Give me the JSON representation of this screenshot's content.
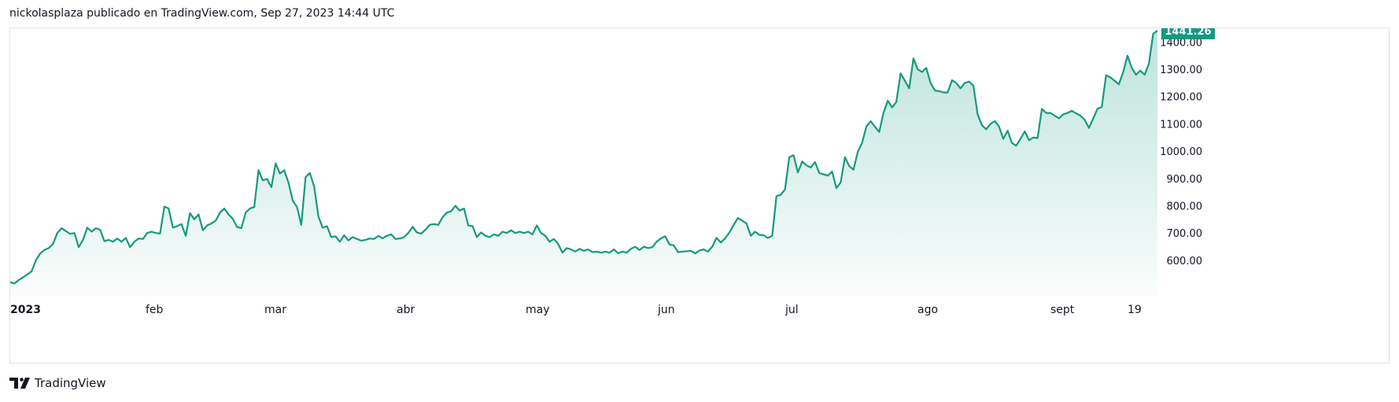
{
  "header": {
    "text": "nickolasplaza publicado en TradingView.com, Sep 27, 2023 14:44 UTC"
  },
  "footer": {
    "brand": "TradingView"
  },
  "chart_data": {
    "type": "area",
    "x_tick_labels": [
      "2023",
      "feb",
      "mar",
      "abr",
      "may",
      "jun",
      "jul",
      "ago",
      "sept",
      "19"
    ],
    "x_tick_dates": [
      "2023-01-01",
      "2023-02-01",
      "2023-03-01",
      "2023-04-01",
      "2023-05-01",
      "2023-06-01",
      "2023-07-01",
      "2023-08-01",
      "2023-09-01",
      "2023-09-19"
    ],
    "y_tick_labels": [
      "600.00",
      "700.00",
      "800.00",
      "900.00",
      "1000.00",
      "1100.00",
      "1200.00",
      "1300.00",
      "1400.00"
    ],
    "y_ticks": [
      600,
      700,
      800,
      900,
      1000,
      1100,
      1200,
      1300,
      1400
    ],
    "ylim": [
      470,
      1450
    ],
    "last_value": 1441.26,
    "last_value_label": "1441.26",
    "grid": false,
    "colors": {
      "line": "#149a80",
      "fill": "#149a80",
      "label_bg": "#149a80",
      "label_text": "#ffffff"
    },
    "series": [
      {
        "values": [
          [
            2023.0,
            520
          ],
          [
            2023.01,
            515
          ],
          [
            2023.02,
            528
          ],
          [
            2023.04,
            548
          ],
          [
            2023.05,
            560
          ],
          [
            2023.06,
            600
          ],
          [
            2023.07,
            625
          ],
          [
            2023.08,
            638
          ],
          [
            2023.09,
            645
          ],
          [
            2023.1,
            660
          ],
          [
            2023.11,
            700
          ],
          [
            2023.12,
            718
          ],
          [
            2023.13,
            707
          ],
          [
            2023.14,
            697
          ],
          [
            2023.15,
            700
          ],
          [
            2023.16,
            648
          ],
          [
            2023.17,
            675
          ],
          [
            2023.18,
            720
          ],
          [
            2023.19,
            705
          ],
          [
            2023.2,
            718
          ],
          [
            2023.21,
            712
          ],
          [
            2023.22,
            670
          ],
          [
            2023.23,
            675
          ],
          [
            2023.24,
            668
          ],
          [
            2023.25,
            680
          ],
          [
            2023.26,
            668
          ],
          [
            2023.27,
            682
          ],
          [
            2023.28,
            648
          ],
          [
            2023.29,
            668
          ],
          [
            2023.3,
            680
          ],
          [
            2023.31,
            678
          ],
          [
            2023.32,
            700
          ],
          [
            2023.33,
            705
          ],
          [
            2023.34,
            700
          ],
          [
            2023.35,
            698
          ],
          [
            2023.36,
            797
          ],
          [
            2023.37,
            790
          ],
          [
            2023.38,
            720
          ],
          [
            2023.39,
            725
          ],
          [
            2023.4,
            733
          ],
          [
            2023.41,
            690
          ],
          [
            2023.42,
            773
          ],
          [
            2023.43,
            750
          ],
          [
            2023.44,
            768
          ],
          [
            2023.45,
            710
          ],
          [
            2023.46,
            728
          ],
          [
            2023.47,
            735
          ],
          [
            2023.48,
            745
          ],
          [
            2023.49,
            775
          ],
          [
            2023.5,
            790
          ],
          [
            2023.51,
            768
          ],
          [
            2023.52,
            752
          ],
          [
            2023.53,
            722
          ],
          [
            2023.54,
            718
          ],
          [
            2023.55,
            775
          ],
          [
            2023.56,
            790
          ],
          [
            2023.57,
            795
          ],
          [
            2023.58,
            930
          ],
          [
            2023.59,
            893
          ],
          [
            2023.6,
            898
          ],
          [
            2023.61,
            868
          ],
          [
            2023.62,
            955
          ],
          [
            2023.63,
            918
          ],
          [
            2023.64,
            930
          ],
          [
            2023.65,
            885
          ],
          [
            2023.66,
            818
          ],
          [
            2023.67,
            795
          ],
          [
            2023.68,
            730
          ],
          [
            2023.69,
            905
          ],
          [
            2023.7,
            920
          ],
          [
            2023.71,
            870
          ],
          [
            2023.72,
            760
          ],
          [
            2023.73,
            720
          ],
          [
            2023.74,
            725
          ],
          [
            2023.75,
            685
          ],
          [
            2023.76,
            688
          ],
          [
            2023.77,
            668
          ],
          [
            2023.78,
            692
          ],
          [
            2023.79,
            673
          ],
          [
            2023.8,
            685
          ],
          [
            2023.81,
            678
          ],
          [
            2023.82,
            672
          ],
          [
            2023.83,
            675
          ],
          [
            2023.84,
            680
          ],
          [
            2023.85,
            678
          ],
          [
            2023.86,
            690
          ],
          [
            2023.87,
            680
          ],
          [
            2023.88,
            690
          ],
          [
            2023.89,
            695
          ],
          [
            2023.9,
            678
          ],
          [
            2023.91,
            680
          ],
          [
            2023.92,
            685
          ],
          [
            2023.93,
            700
          ],
          [
            2023.94,
            723
          ],
          [
            2023.95,
            702
          ],
          [
            2023.96,
            698
          ],
          [
            2023.97,
            712
          ],
          [
            2023.98,
            730
          ],
          [
            2023.99,
            733
          ],
          [
            2024.0,
            730
          ],
          [
            2024.01,
            758
          ],
          [
            2024.02,
            775
          ],
          [
            2024.03,
            780
          ],
          [
            2024.04,
            800
          ],
          [
            2024.05,
            782
          ],
          [
            2024.06,
            790
          ],
          [
            2024.07,
            728
          ],
          [
            2024.08,
            725
          ],
          [
            2024.09,
            685
          ],
          [
            2024.1,
            702
          ],
          [
            2024.11,
            690
          ],
          [
            2024.12,
            685
          ],
          [
            2024.13,
            695
          ],
          [
            2024.14,
            690
          ],
          [
            2024.15,
            705
          ],
          [
            2024.16,
            700
          ],
          [
            2024.17,
            710
          ],
          [
            2024.18,
            700
          ],
          [
            2024.19,
            705
          ],
          [
            2024.2,
            700
          ],
          [
            2024.21,
            705
          ],
          [
            2024.22,
            695
          ],
          [
            2024.23,
            728
          ],
          [
            2024.24,
            700
          ],
          [
            2024.25,
            690
          ],
          [
            2024.26,
            668
          ],
          [
            2024.27,
            678
          ],
          [
            2024.28,
            660
          ],
          [
            2024.29,
            628
          ],
          [
            2024.3,
            645
          ],
          [
            2024.31,
            640
          ],
          [
            2024.32,
            632
          ],
          [
            2024.33,
            642
          ],
          [
            2024.34,
            635
          ],
          [
            2024.35,
            640
          ],
          [
            2024.36,
            630
          ],
          [
            2024.37,
            632
          ],
          [
            2024.38,
            628
          ],
          [
            2024.39,
            632
          ],
          [
            2024.4,
            628
          ],
          [
            2024.41,
            640
          ],
          [
            2024.42,
            626
          ],
          [
            2024.43,
            632
          ],
          [
            2024.44,
            628
          ],
          [
            2024.45,
            642
          ],
          [
            2024.46,
            650
          ],
          [
            2024.47,
            638
          ],
          [
            2024.48,
            650
          ],
          [
            2024.49,
            645
          ],
          [
            2024.5,
            648
          ],
          [
            2024.51,
            668
          ],
          [
            2024.52,
            680
          ],
          [
            2024.53,
            688
          ],
          [
            2024.54,
            658
          ],
          [
            2024.55,
            655
          ],
          [
            2024.56,
            630
          ],
          [
            2024.57,
            632
          ],
          [
            2024.58,
            633
          ],
          [
            2024.59,
            635
          ],
          [
            2024.6,
            625
          ],
          [
            2024.61,
            636
          ],
          [
            2024.62,
            640
          ],
          [
            2024.63,
            632
          ],
          [
            2024.64,
            650
          ],
          [
            2024.65,
            682
          ],
          [
            2024.66,
            665
          ],
          [
            2024.67,
            680
          ],
          [
            2024.68,
            702
          ],
          [
            2024.69,
            730
          ],
          [
            2024.7,
            755
          ],
          [
            2024.71,
            745
          ],
          [
            2024.72,
            735
          ],
          [
            2024.73,
            690
          ],
          [
            2024.74,
            705
          ],
          [
            2024.75,
            693
          ],
          [
            2024.76,
            692
          ],
          [
            2024.77,
            682
          ],
          [
            2024.78,
            690
          ],
          [
            2024.79,
            835
          ],
          [
            2024.8,
            840
          ],
          [
            2024.81,
            860
          ],
          [
            2024.82,
            978
          ],
          [
            2024.83,
            985
          ],
          [
            2024.84,
            922
          ],
          [
            2024.85,
            962
          ],
          [
            2024.86,
            948
          ],
          [
            2024.87,
            940
          ],
          [
            2024.88,
            960
          ],
          [
            2024.89,
            920
          ],
          [
            2024.9,
            915
          ],
          [
            2024.91,
            910
          ],
          [
            2024.92,
            925
          ],
          [
            2024.93,
            865
          ],
          [
            2024.94,
            885
          ],
          [
            2024.95,
            978
          ],
          [
            2024.96,
            945
          ],
          [
            2024.97,
            932
          ],
          [
            2024.98,
            998
          ],
          [
            2024.99,
            1030
          ],
          [
            2025.0,
            1090
          ],
          [
            2025.01,
            1110
          ],
          [
            2025.02,
            1090
          ],
          [
            2025.03,
            1070
          ],
          [
            2025.04,
            1140
          ],
          [
            2025.05,
            1185
          ],
          [
            2025.06,
            1160
          ],
          [
            2025.07,
            1180
          ],
          [
            2025.08,
            1285
          ],
          [
            2025.09,
            1258
          ],
          [
            2025.1,
            1230
          ],
          [
            2025.11,
            1340
          ],
          [
            2025.12,
            1300
          ],
          [
            2025.13,
            1290
          ],
          [
            2025.14,
            1305
          ],
          [
            2025.15,
            1250
          ],
          [
            2025.16,
            1222
          ],
          [
            2025.17,
            1220
          ],
          [
            2025.18,
            1215
          ],
          [
            2025.19,
            1215
          ],
          [
            2025.2,
            1260
          ],
          [
            2025.21,
            1250
          ],
          [
            2025.22,
            1230
          ],
          [
            2025.23,
            1250
          ],
          [
            2025.24,
            1255
          ],
          [
            2025.25,
            1240
          ],
          [
            2025.26,
            1135
          ],
          [
            2025.27,
            1095
          ],
          [
            2025.28,
            1080
          ],
          [
            2025.29,
            1100
          ],
          [
            2025.3,
            1110
          ],
          [
            2025.31,
            1090
          ],
          [
            2025.32,
            1045
          ],
          [
            2025.33,
            1075
          ],
          [
            2025.34,
            1030
          ],
          [
            2025.35,
            1020
          ],
          [
            2025.36,
            1045
          ],
          [
            2025.37,
            1072
          ],
          [
            2025.38,
            1040
          ],
          [
            2025.39,
            1050
          ],
          [
            2025.4,
            1048
          ],
          [
            2025.41,
            1155
          ],
          [
            2025.42,
            1140
          ],
          [
            2025.43,
            1140
          ],
          [
            2025.44,
            1130
          ],
          [
            2025.45,
            1120
          ],
          [
            2025.46,
            1135
          ],
          [
            2025.47,
            1140
          ],
          [
            2025.48,
            1148
          ],
          [
            2025.49,
            1138
          ],
          [
            2025.5,
            1130
          ],
          [
            2025.51,
            1115
          ],
          [
            2025.52,
            1085
          ],
          [
            2025.53,
            1120
          ],
          [
            2025.54,
            1155
          ],
          [
            2025.55,
            1162
          ],
          [
            2025.56,
            1278
          ],
          [
            2025.57,
            1270
          ],
          [
            2025.58,
            1258
          ],
          [
            2025.59,
            1245
          ],
          [
            2025.6,
            1290
          ],
          [
            2025.61,
            1350
          ],
          [
            2025.62,
            1305
          ],
          [
            2025.63,
            1280
          ],
          [
            2025.64,
            1295
          ],
          [
            2025.65,
            1280
          ],
          [
            2025.66,
            1320
          ],
          [
            2025.67,
            1430
          ],
          [
            2025.68,
            1441.26
          ]
        ]
      }
    ]
  }
}
